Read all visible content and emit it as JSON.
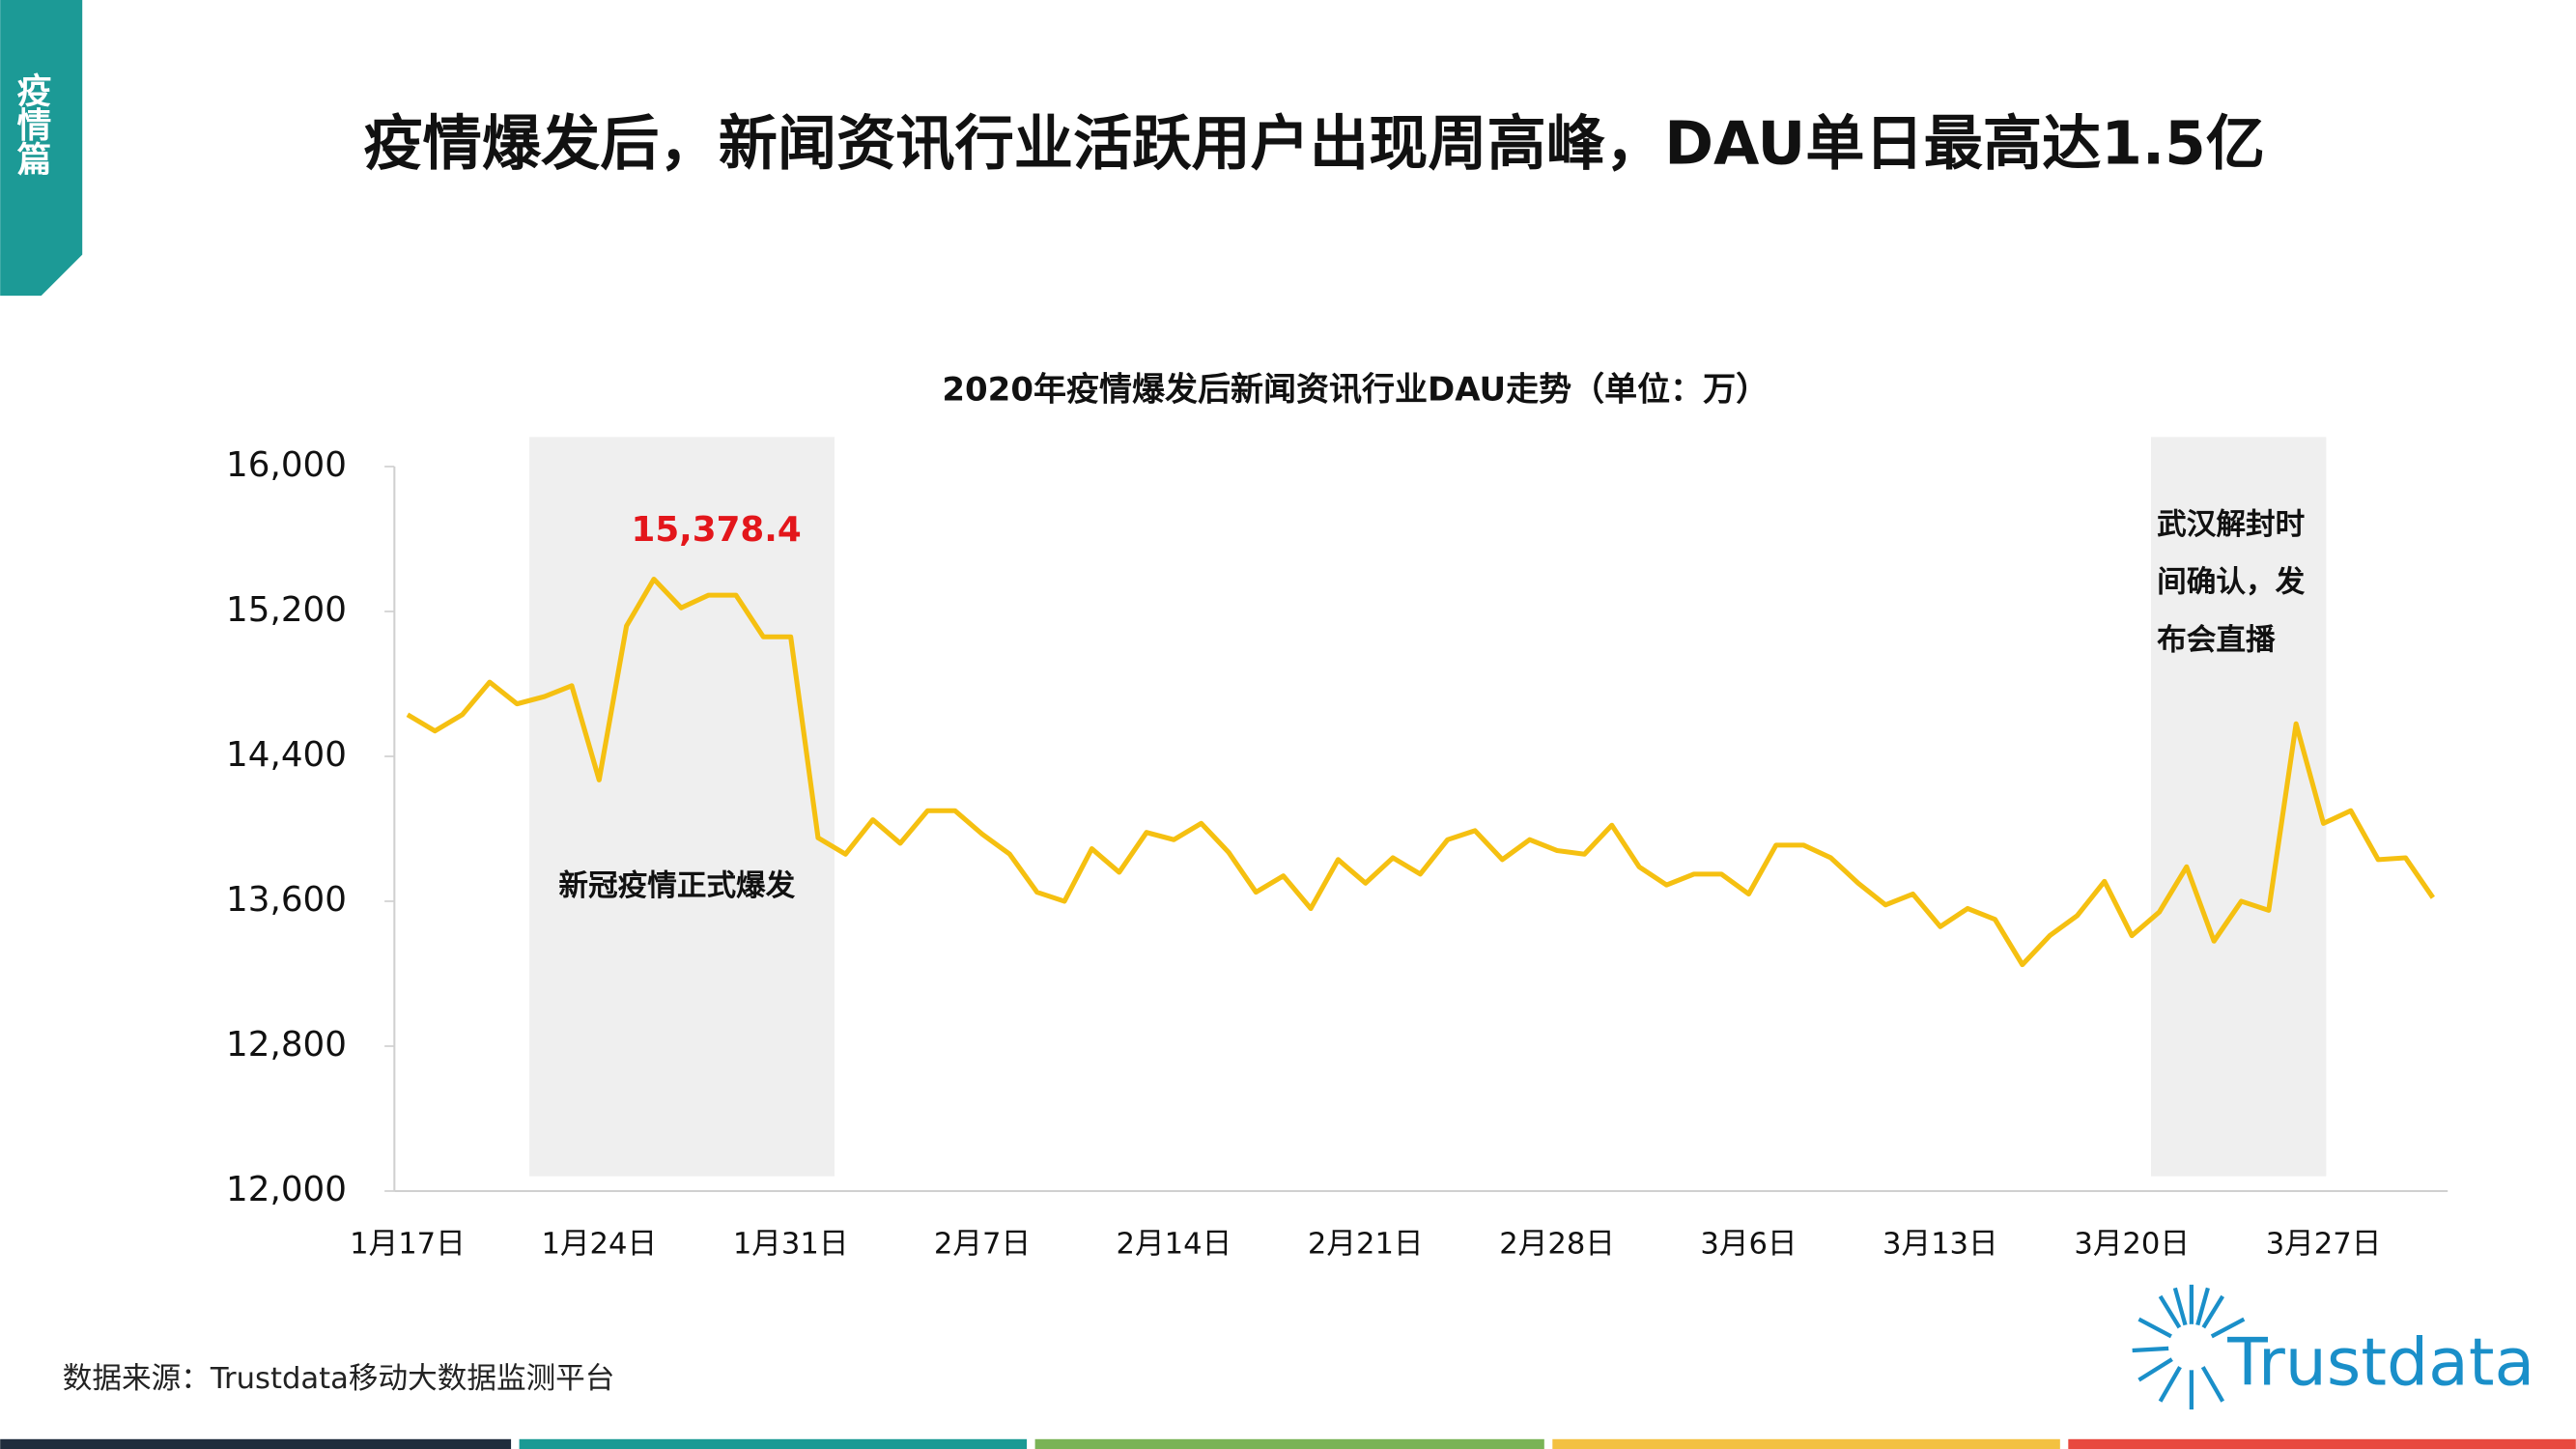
{
  "side_tab": "疫情篇",
  "header": {
    "title": "疫情爆发后，新闻资讯行业活跃用户出现周高峰，DAU单日最高达1.5亿"
  },
  "footer": {
    "source": "数据来源：Trustdata移动大数据监测平台",
    "logo": "Trustdata"
  },
  "chart_data": {
    "type": "line",
    "title": "2020年疫情爆发后新闻资讯行业DAU走势（单位：万）",
    "categories": [
      "1月17日",
      null,
      null,
      null,
      null,
      null,
      null,
      "1月24日",
      null,
      null,
      null,
      null,
      null,
      null,
      "1月31日",
      null,
      null,
      null,
      null,
      null,
      null,
      "2月7日",
      null,
      null,
      null,
      null,
      null,
      null,
      "2月14日",
      null,
      null,
      null,
      null,
      null,
      null,
      "2月21日",
      null,
      null,
      null,
      null,
      null,
      null,
      "2月28日",
      null,
      null,
      null,
      null,
      null,
      null,
      "3月6日",
      null,
      null,
      null,
      null,
      null,
      null,
      "3月13日",
      null,
      null,
      null,
      null,
      null,
      null,
      "3月20日",
      null,
      null,
      null,
      null,
      null,
      null,
      "3月27日",
      null,
      null,
      null,
      null
    ],
    "values": [
      14630,
      14540,
      14630,
      14810,
      14690,
      14730,
      14790,
      14270,
      15120,
      15378.4,
      15220,
      15290,
      15290,
      15060,
      15060,
      13950,
      13860,
      14050,
      13920,
      14100,
      14100,
      13970,
      13860,
      13650,
      13600,
      13890,
      13760,
      13980,
      13940,
      14030,
      13870,
      13650,
      13740,
      13560,
      13830,
      13700,
      13840,
      13750,
      13940,
      13990,
      13830,
      13940,
      13880,
      13860,
      14020,
      13790,
      13690,
      13750,
      13750,
      13640,
      13910,
      13910,
      13840,
      13700,
      13580,
      13640,
      13460,
      13560,
      13500,
      13250,
      13410,
      13520,
      13710,
      13410,
      13540,
      13790,
      13380,
      13600,
      13550,
      14580,
      14030,
      14100,
      13830,
      13840,
      13620
    ],
    "value_labels": [
      null,
      null,
      null,
      null,
      null,
      null,
      null,
      null,
      null,
      "15,378.4",
      null,
      null,
      null,
      null,
      null,
      null,
      null,
      null,
      null,
      null,
      null,
      null,
      null,
      null,
      null,
      null,
      null,
      null,
      null,
      null,
      null,
      null,
      null,
      null,
      null,
      null,
      null,
      null,
      null,
      null,
      null,
      null,
      null,
      null,
      null,
      null,
      null,
      null,
      null,
      null,
      null,
      null,
      null,
      null,
      null,
      null,
      null,
      null,
      null,
      null,
      null,
      null,
      null,
      null,
      null,
      null,
      null,
      null,
      null,
      null,
      null,
      null,
      null,
      null,
      null
    ],
    "color": "#f5c011",
    "value_label_color": "#e3161b",
    "ylim": [
      12000,
      16000
    ],
    "yticks": [
      {
        "value": 12000,
        "label": "12,000"
      },
      {
        "value": 12800,
        "label": "12,800"
      },
      {
        "value": 13600,
        "label": "13,600"
      },
      {
        "value": 14400,
        "label": "14,400"
      },
      {
        "value": 15200,
        "label": "15,200"
      },
      {
        "value": 16000,
        "label": "16,000"
      }
    ],
    "annotations": [
      {
        "text": "新冠疫情正式爆发"
      },
      {
        "text": "武汉解封时间确认，发布会直播"
      }
    ]
  }
}
